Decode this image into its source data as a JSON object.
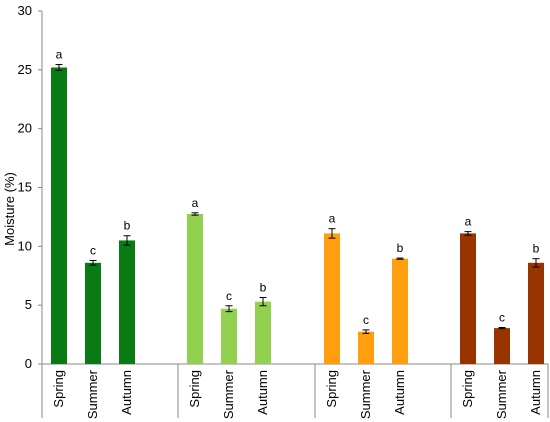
{
  "chart_data": {
    "type": "bar",
    "ylabel": "Moisture (%)",
    "ylim": [
      0,
      30
    ],
    "yticks": [
      0,
      5,
      10,
      15,
      20,
      25,
      30
    ],
    "grid": false,
    "groups": [
      {
        "color": "#0a7a14",
        "bars": [
          {
            "category": "Spring",
            "value": 25.2,
            "error": 0.25,
            "letter": "a"
          },
          {
            "category": "Summer",
            "value": 8.6,
            "error": 0.2,
            "letter": "c"
          },
          {
            "category": "Autumn",
            "value": 10.5,
            "error": 0.4,
            "letter": "b"
          }
        ]
      },
      {
        "color": "#92d050",
        "bars": [
          {
            "category": "Spring",
            "value": 12.75,
            "error": 0.1,
            "letter": "a"
          },
          {
            "category": "Summer",
            "value": 4.7,
            "error": 0.25,
            "letter": "c"
          },
          {
            "category": "Autumn",
            "value": 5.3,
            "error": 0.35,
            "letter": "b"
          }
        ]
      },
      {
        "color": "#ff9e0f",
        "bars": [
          {
            "category": "Spring",
            "value": 11.1,
            "error": 0.4,
            "letter": "a"
          },
          {
            "category": "Summer",
            "value": 2.75,
            "error": 0.15,
            "letter": "c"
          },
          {
            "category": "Autumn",
            "value": 8.95,
            "error": 0.05,
            "letter": "b"
          }
        ]
      },
      {
        "color": "#993300",
        "bars": [
          {
            "category": "Spring",
            "value": 11.1,
            "error": 0.15,
            "letter": "a"
          },
          {
            "category": "Summer",
            "value": 3.05,
            "error": 0.05,
            "letter": "c"
          },
          {
            "category": "Autumn",
            "value": 8.6,
            "error": 0.35,
            "letter": "b"
          }
        ]
      }
    ]
  }
}
